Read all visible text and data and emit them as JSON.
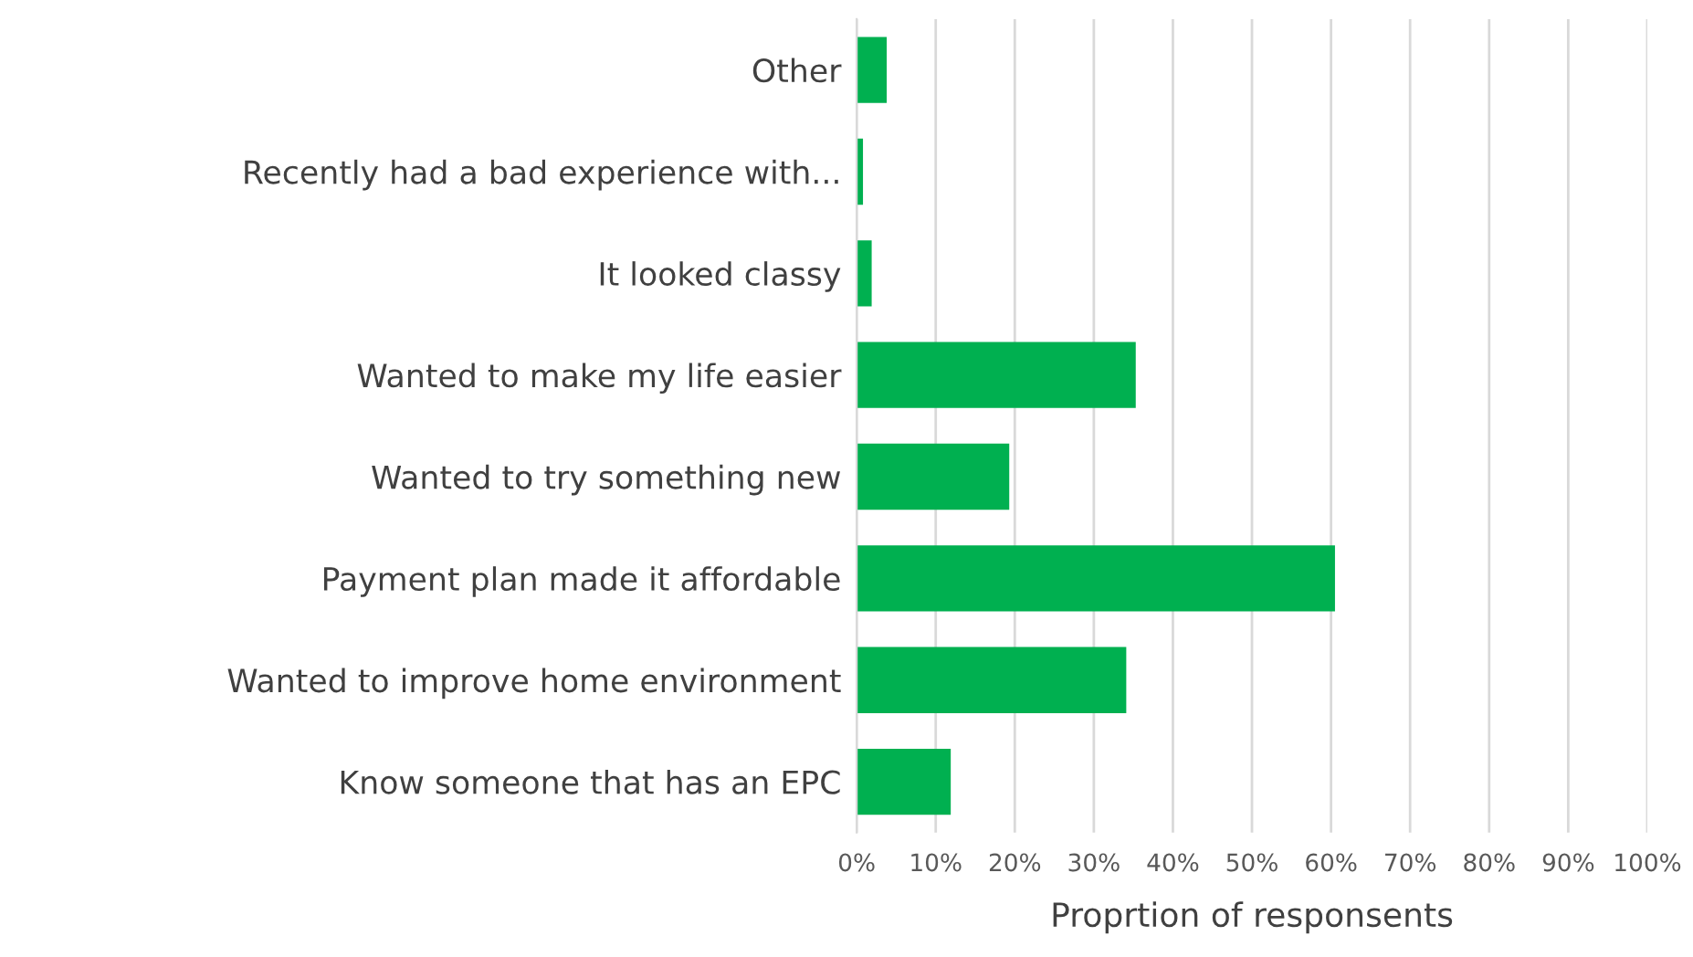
{
  "chart_data": {
    "type": "bar",
    "orientation": "horizontal",
    "categories": [
      "Other",
      "Recently had a bad experience with...",
      "It looked classy",
      "Wanted to make my life easier",
      "Wanted to try something new",
      "Payment plan made it affordable",
      "Wanted to improve home environment",
      "Know someone that has an EPC"
    ],
    "values": [
      3.8,
      0.8,
      1.9,
      35.3,
      19.3,
      60.5,
      34.1,
      11.9
    ],
    "color": "#00b050",
    "xlabel": "Proprtion of responsents",
    "xlim": [
      0,
      100
    ],
    "xticks": [
      {
        "value": 0,
        "label": "0%"
      },
      {
        "value": 10,
        "label": "10%"
      },
      {
        "value": 20,
        "label": "20%"
      },
      {
        "value": 30,
        "label": "30%"
      },
      {
        "value": 40,
        "label": "40%"
      },
      {
        "value": 50,
        "label": "50%"
      },
      {
        "value": 60,
        "label": "60%"
      },
      {
        "value": 70,
        "label": "70%"
      },
      {
        "value": 80,
        "label": "80%"
      },
      {
        "value": 90,
        "label": "90%"
      },
      {
        "value": 100,
        "label": "100%"
      }
    ],
    "grid": "x"
  }
}
